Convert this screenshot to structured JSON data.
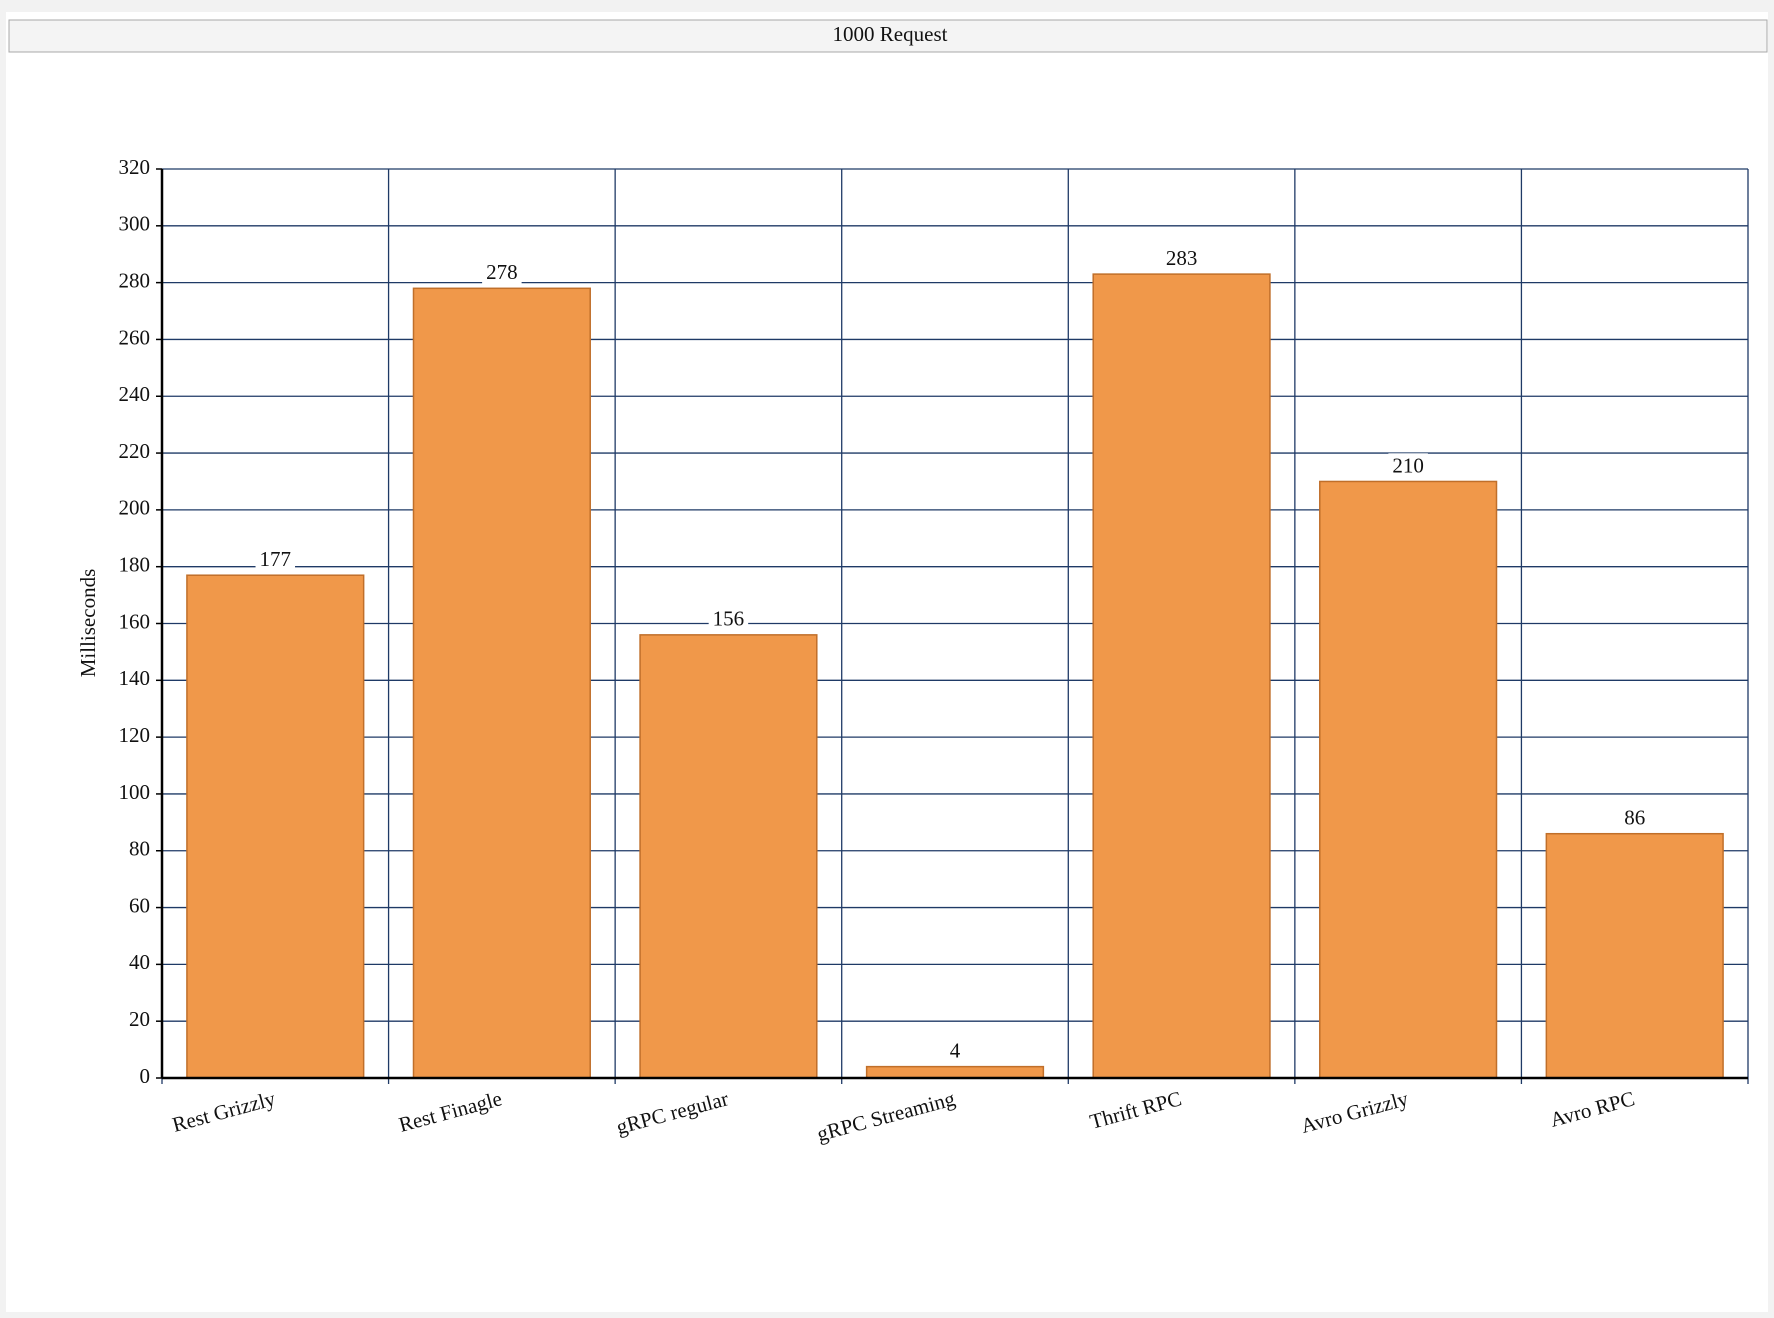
{
  "chart_data": {
    "type": "bar",
    "title": "1000 Request",
    "y_label": "Milliseconds",
    "categories": [
      "Rest Grizzly",
      "Rest Finagle",
      "gRPC regular",
      "gRPC Streaming",
      "Thrift RPC",
      "Avro Grizzly",
      "Avro RPC"
    ],
    "values": [
      177,
      278,
      156,
      4,
      283,
      210,
      86
    ],
    "color": "#f0984a",
    "ylim": [
      0,
      320
    ],
    "yticks": [
      0,
      20,
      40,
      60,
      80,
      100,
      120,
      140,
      160,
      180,
      200,
      220,
      240,
      260,
      280,
      300,
      320
    ],
    "grid": true
  }
}
